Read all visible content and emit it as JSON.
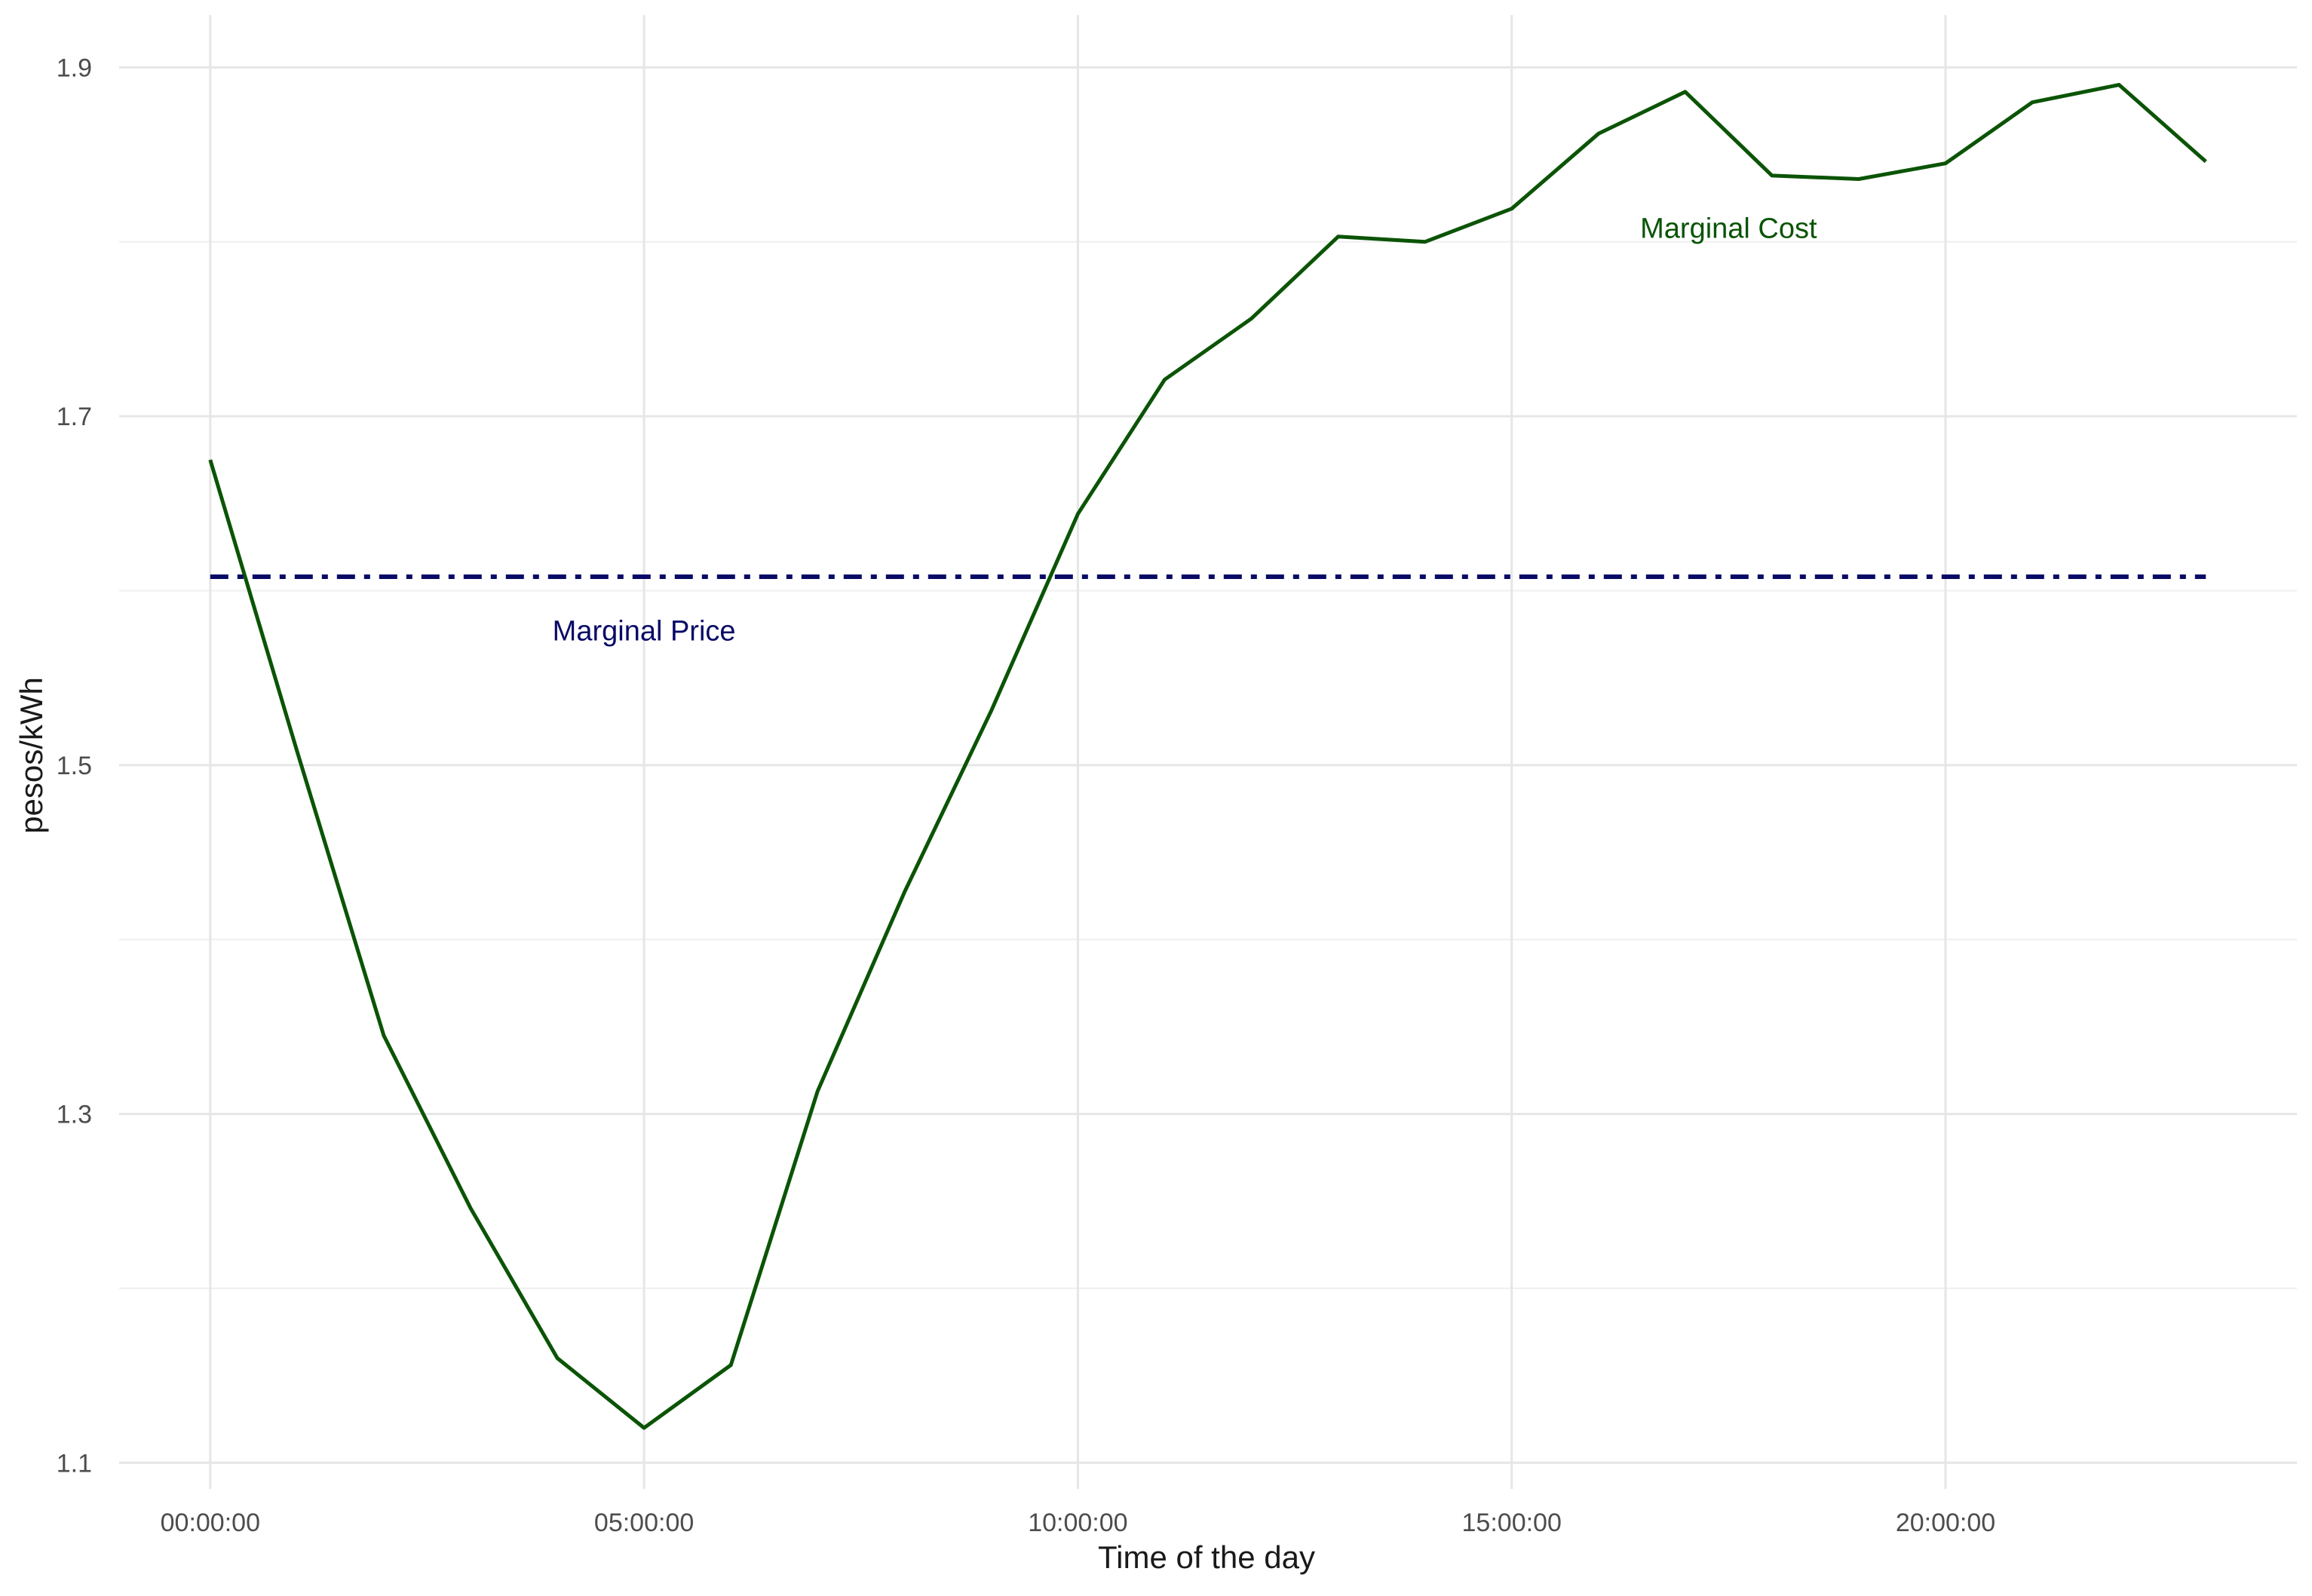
{
  "chart_data": {
    "type": "line",
    "xlabel": "Time of the day",
    "ylabel": "pesos/kWh",
    "xlim": [
      -1.05,
      24.05
    ],
    "ylim": [
      1.085,
      1.93
    ],
    "x_ticks": [
      0,
      5,
      10,
      15,
      20
    ],
    "x_tick_labels": [
      "00:00:00",
      "05:00:00",
      "10:00:00",
      "15:00:00",
      "20:00:00"
    ],
    "y_ticks": [
      1.1,
      1.3,
      1.5,
      1.7,
      1.9
    ],
    "y_tick_labels": [
      "1.1",
      "1.3",
      "1.5",
      "1.7",
      "1.9"
    ],
    "y_minor_ticks": [
      1.2,
      1.4,
      1.6,
      1.8
    ],
    "grid": true,
    "colors": {
      "marginal_cost": "#0b5406",
      "marginal_price": "#080a66",
      "grid": "#e6e6e6",
      "tick_text": "#4d4d4d",
      "axis_title": "#1a1a1a"
    },
    "series": [
      {
        "style": "solid",
        "x": [
          0,
          1,
          2,
          3,
          4,
          5,
          6,
          7,
          8,
          9,
          10,
          11,
          12,
          13,
          14,
          15,
          16,
          17,
          18,
          19,
          20,
          21,
          22,
          23
        ],
        "values": [
          1.675,
          1.508,
          1.345,
          1.246,
          1.16,
          1.12,
          1.156,
          1.313,
          1.427,
          1.531,
          1.644,
          1.721,
          1.756,
          1.803,
          1.8,
          1.819,
          1.862,
          1.886,
          1.838,
          1.836,
          1.845,
          1.88,
          1.89,
          1.846
        ]
      },
      {
        "style": "dashdot",
        "x": [
          0,
          23
        ],
        "values": [
          1.608,
          1.608
        ]
      }
    ],
    "annotations": [
      {
        "text": "Marginal Cost",
        "x": 17.5,
        "y": 1.808,
        "color": "#0b5406"
      },
      {
        "text": "Marginal Price",
        "x": 5.0,
        "y": 1.577,
        "color": "#080a66"
      }
    ]
  }
}
